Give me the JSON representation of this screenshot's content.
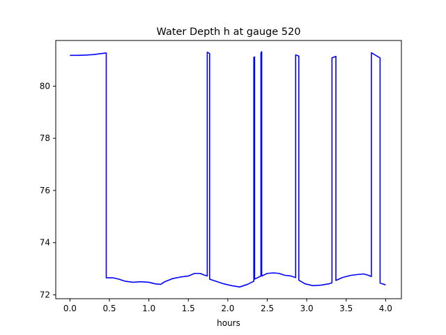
{
  "chart_data": {
    "type": "line",
    "title": "Water Depth h at gauge 520",
    "xlabel": "hours",
    "ylabel": "",
    "xlim": [
      -0.18,
      4.2
    ],
    "ylim": [
      71.85,
      81.75
    ],
    "xticks": [
      0.0,
      0.5,
      1.0,
      1.5,
      2.0,
      2.5,
      3.0,
      3.5,
      4.0
    ],
    "xtick_labels": [
      "0.0",
      "0.5",
      "1.0",
      "1.5",
      "2.0",
      "2.5",
      "3.0",
      "3.5",
      "4.0"
    ],
    "yticks": [
      72,
      74,
      76,
      78,
      80
    ],
    "ytick_labels": [
      "72",
      "74",
      "76",
      "78",
      "80"
    ],
    "grid": false,
    "series": [
      {
        "color": "#0000ff",
        "x": [
          0.0,
          0.1,
          0.2,
          0.3,
          0.4,
          0.46,
          0.46,
          0.55,
          0.62,
          0.7,
          0.8,
          0.9,
          1.0,
          1.08,
          1.15,
          1.2,
          1.3,
          1.4,
          1.5,
          1.58,
          1.65,
          1.7,
          1.74,
          1.74,
          1.77,
          1.77,
          1.85,
          1.95,
          2.05,
          2.15,
          2.25,
          2.33,
          2.33,
          2.34,
          2.34,
          2.42,
          2.42,
          2.43,
          2.43,
          2.5,
          2.58,
          2.65,
          2.72,
          2.8,
          2.86,
          2.86,
          2.9,
          2.9,
          2.98,
          3.08,
          3.18,
          3.28,
          3.32,
          3.32,
          3.37,
          3.37,
          3.45,
          3.55,
          3.65,
          3.72,
          3.78,
          3.82,
          3.82,
          3.93,
          3.93,
          4.0
        ],
        "y": [
          81.18,
          81.18,
          81.19,
          81.21,
          81.25,
          81.27,
          72.65,
          72.65,
          72.6,
          72.52,
          72.48,
          72.5,
          72.48,
          72.42,
          72.4,
          72.5,
          72.62,
          72.68,
          72.72,
          72.82,
          72.82,
          72.76,
          72.72,
          81.3,
          81.25,
          72.6,
          72.52,
          72.42,
          72.35,
          72.3,
          72.4,
          72.52,
          81.1,
          81.12,
          72.6,
          72.72,
          81.28,
          81.32,
          72.72,
          72.82,
          72.84,
          72.82,
          72.75,
          72.72,
          72.66,
          81.2,
          81.15,
          72.56,
          72.42,
          72.35,
          72.37,
          72.42,
          72.46,
          81.08,
          81.14,
          72.55,
          72.66,
          72.74,
          72.78,
          72.8,
          72.75,
          72.7,
          81.28,
          81.08,
          72.45,
          72.38
        ]
      }
    ]
  }
}
